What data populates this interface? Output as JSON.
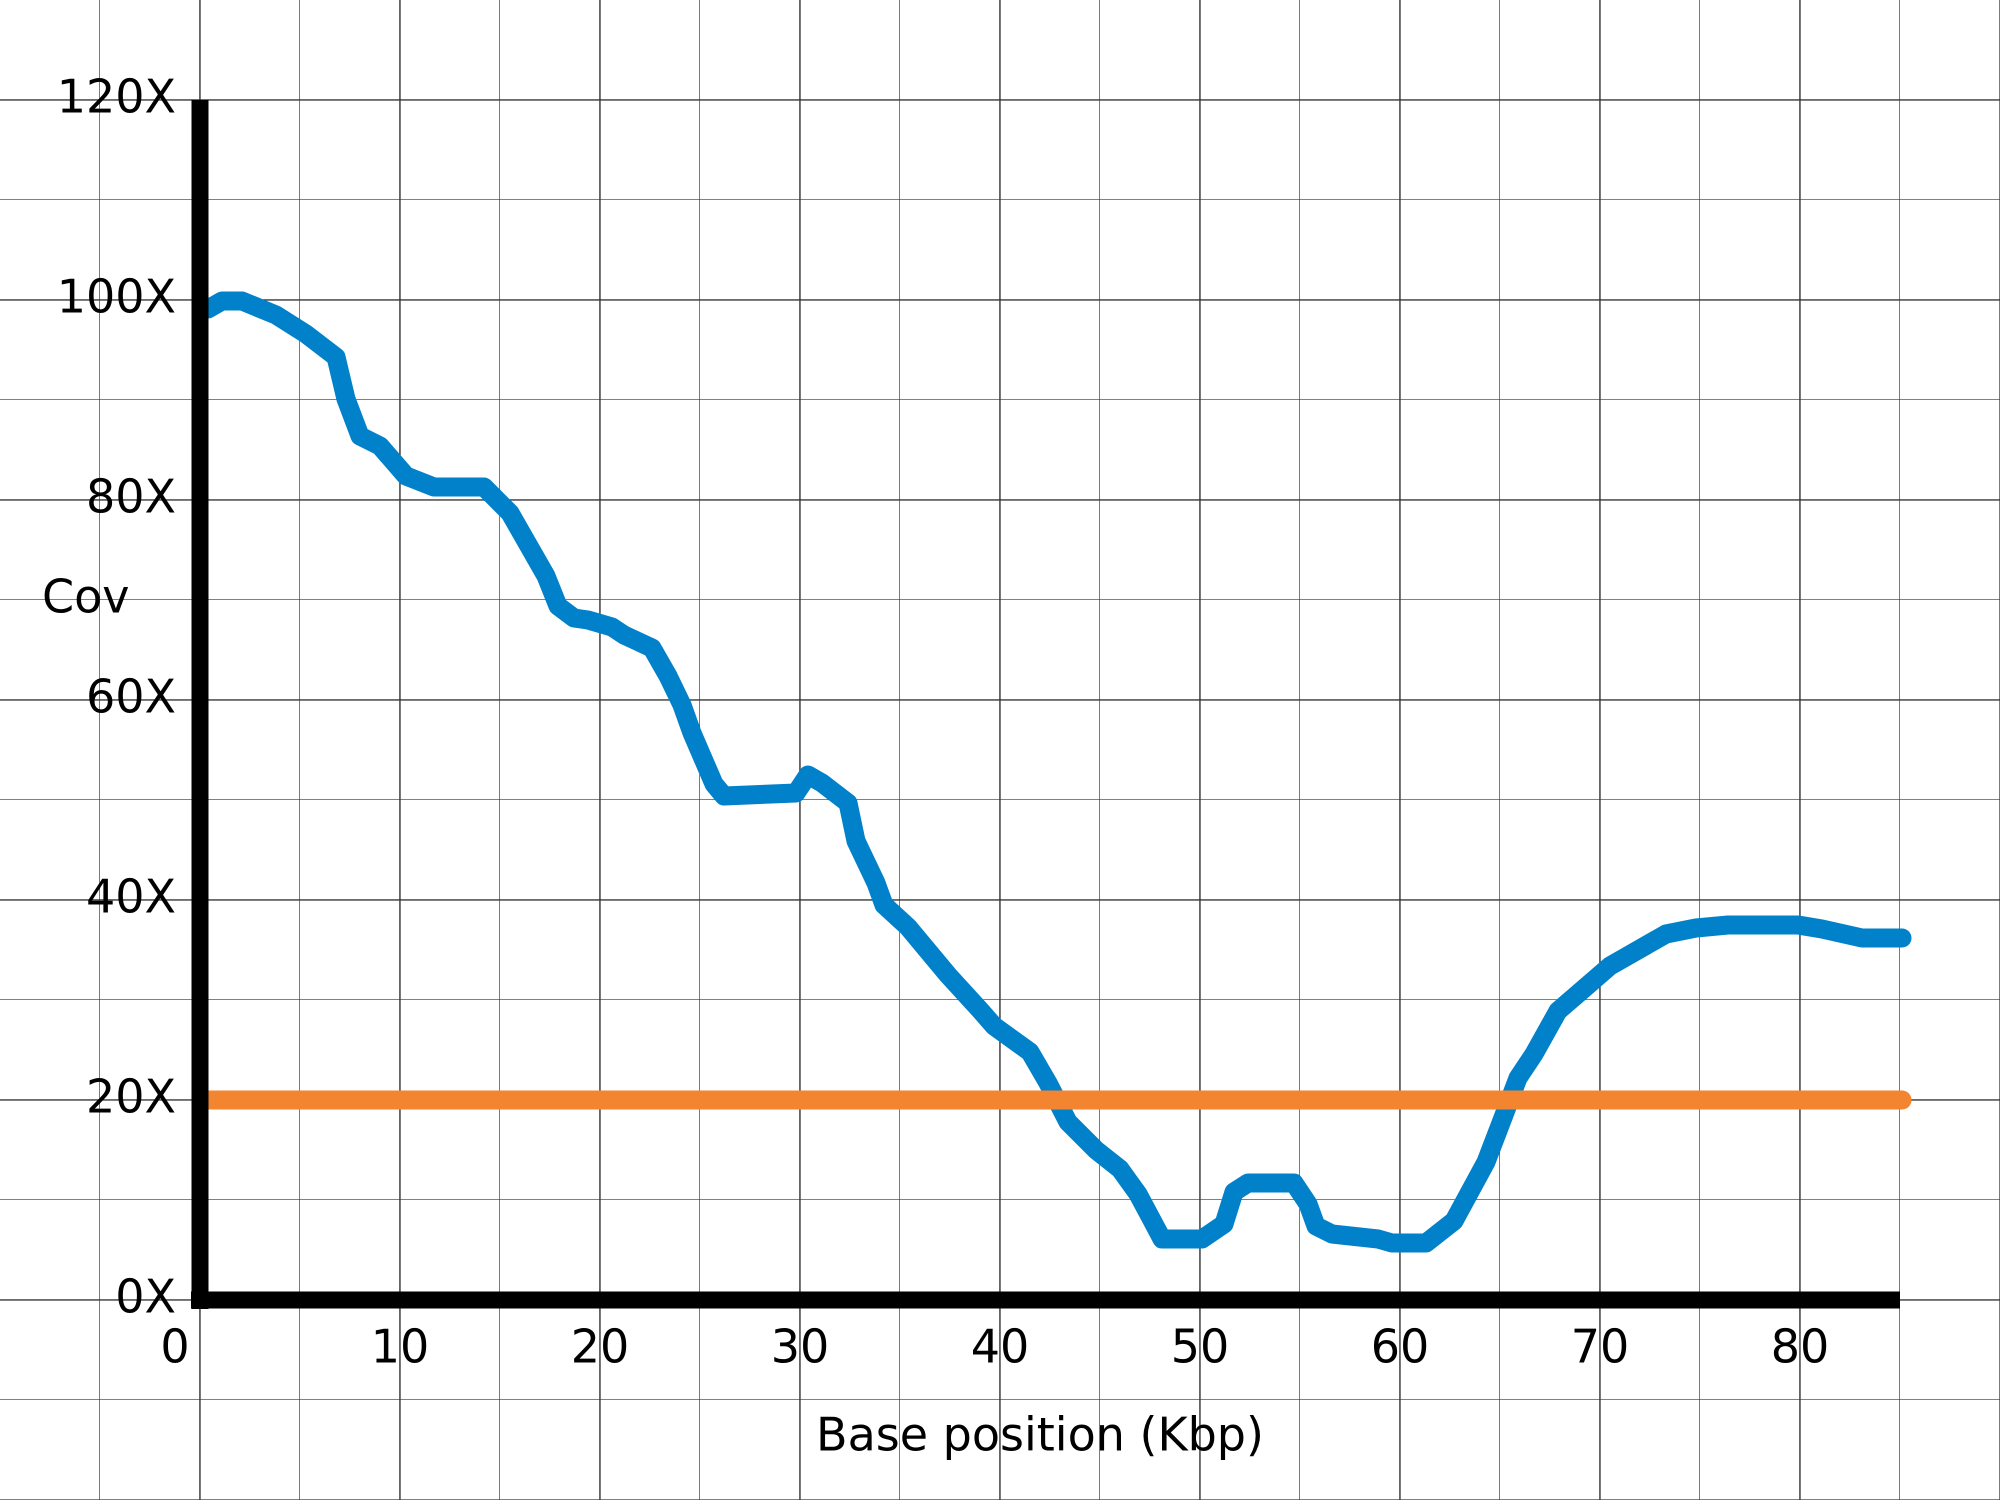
{
  "chart_data": {
    "type": "line",
    "x_label": "Base position (Kbp)",
    "y_label": "Cov",
    "xlim": [
      0,
      85
    ],
    "ylim": [
      0,
      120
    ],
    "xticks": [
      0,
      10,
      20,
      30,
      40,
      50,
      60,
      70,
      80
    ],
    "yticks": [
      {
        "value": 0,
        "label": "0X"
      },
      {
        "value": 20,
        "label": "20X"
      },
      {
        "value": 40,
        "label": "40X"
      },
      {
        "value": 60,
        "label": "60X"
      },
      {
        "value": 80,
        "label": "80X"
      },
      {
        "value": 100,
        "label": "100X"
      },
      {
        "value": 120,
        "label": "120X"
      }
    ],
    "grid": true,
    "series": [
      {
        "color": "#0081c9",
        "x": [
          0.4,
          1.1,
          2.1,
          3.8,
          5.3,
          6.8,
          7.3,
          8.0,
          9.0,
          10.3,
          11.7,
          14.2,
          15.5,
          17.3,
          17.9,
          18.7,
          19.4,
          20.6,
          21.2,
          22.6,
          23.4,
          24.1,
          24.6,
          25.7,
          26.2,
          29.8,
          30.4,
          31.1,
          32.4,
          32.8,
          33.8,
          34.2,
          35.4,
          37.4,
          39.0,
          39.7,
          41.5,
          42.4,
          43.4,
          44.8,
          46.0,
          46.9,
          48.1,
          50.1,
          51.2,
          51.7,
          52.4,
          54.7,
          55.4,
          55.8,
          56.6,
          58.9,
          59.6,
          61.3,
          62.7,
          64.3,
          65.2,
          65.9,
          66.7,
          67.9,
          69.0,
          70.5,
          73.3,
          74.8,
          76.4,
          79.9,
          81.1,
          83.1,
          85.1
        ],
        "values": [
          99.1,
          99.9,
          99.9,
          98.5,
          96.6,
          94.3,
          90.1,
          86.4,
          85.4,
          82.4,
          81.3,
          81.3,
          78.7,
          72.4,
          69.4,
          68.2,
          68.0,
          67.3,
          66.5,
          65.2,
          62.4,
          59.5,
          56.7,
          51.6,
          50.4,
          50.7,
          52.5,
          51.7,
          49.7,
          45.9,
          41.7,
          39.5,
          37.3,
          32.5,
          29.0,
          27.4,
          24.8,
          21.7,
          17.8,
          15.0,
          13.1,
          10.6,
          6.1,
          6.1,
          7.6,
          10.8,
          11.7,
          11.7,
          9.6,
          7.4,
          6.6,
          6.1,
          5.7,
          5.7,
          7.9,
          13.8,
          18.5,
          22.2,
          24.6,
          28.9,
          30.8,
          33.4,
          36.6,
          37.2,
          37.5,
          37.5,
          37.1,
          36.2,
          36.2
        ]
      },
      {
        "color": "#f38530",
        "x": [
          0.4,
          85.1
        ],
        "values": [
          20,
          20
        ]
      }
    ]
  }
}
